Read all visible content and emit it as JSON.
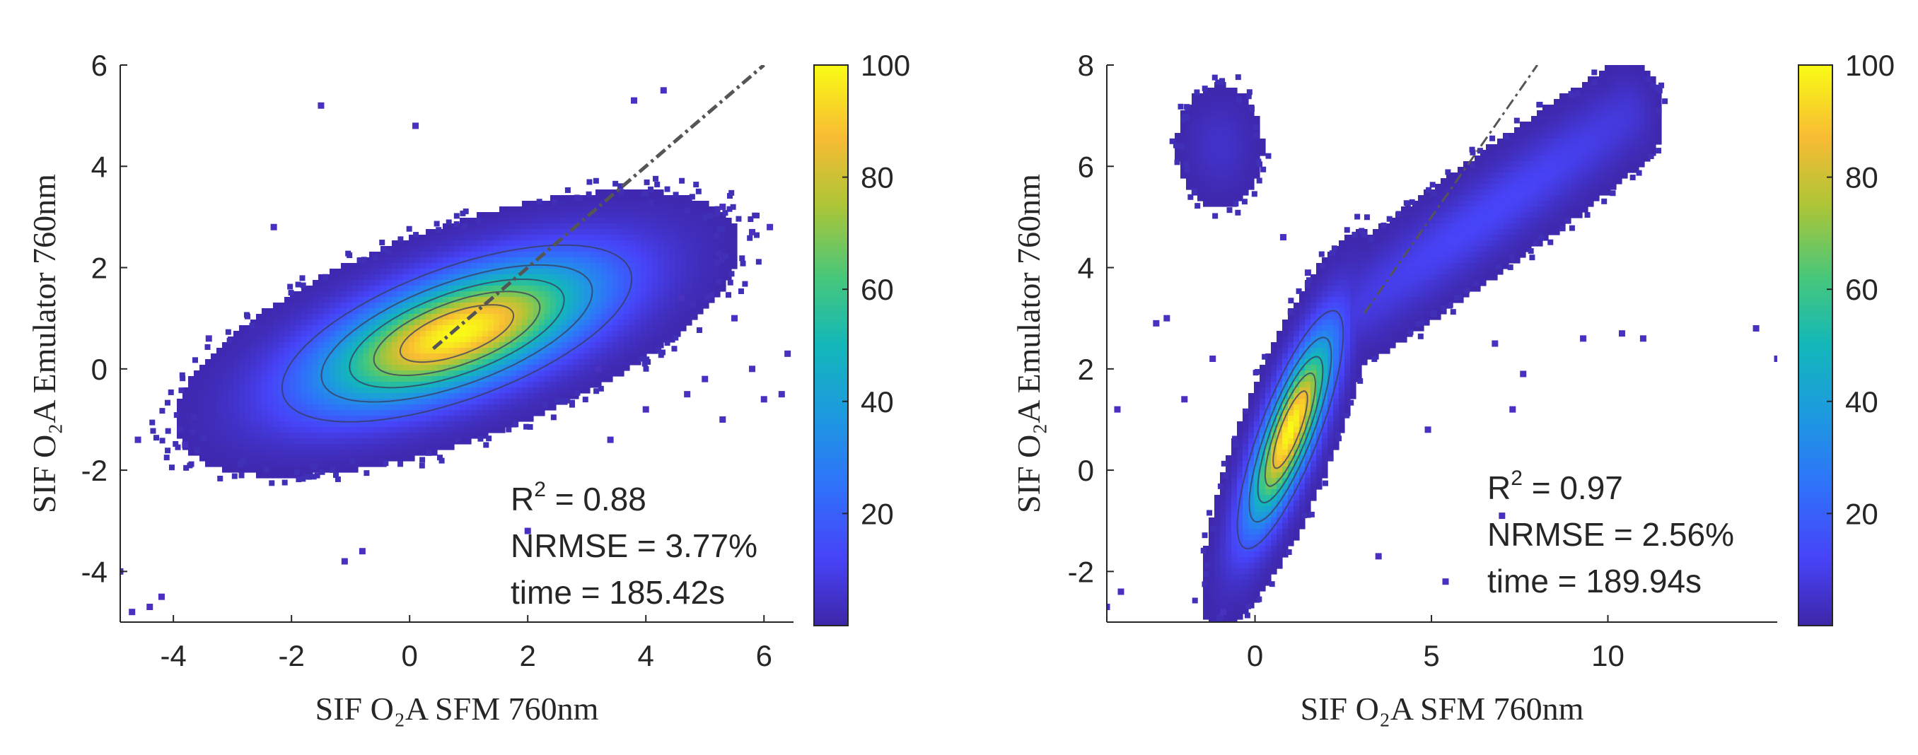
{
  "chart_data": [
    {
      "type": "scatter",
      "subtype": "density-scatter",
      "xlabel": "SIF O₂A SFM 760nm",
      "ylabel": "SIF O₂A Emulator 760nm",
      "xlim": [
        -4.9,
        6.5
      ],
      "ylim": [
        -5,
        6
      ],
      "xticks": [
        -4,
        -2,
        0,
        2,
        4,
        6
      ],
      "yticks": [
        -4,
        -2,
        0,
        2,
        4,
        6
      ],
      "xtick_labels": [
        "-4",
        "-2",
        "0",
        "2",
        "4",
        "6"
      ],
      "ytick_labels": [
        "-4",
        "-2",
        "0",
        "2",
        "4",
        "6"
      ],
      "colorbar": {
        "range": [
          0,
          100
        ],
        "ticks": [
          20,
          40,
          60,
          80,
          100
        ],
        "tick_labels": [
          "20",
          "40",
          "60",
          "80",
          "100"
        ]
      },
      "core": {
        "center": [
          0.8,
          0.7
        ],
        "angle_deg": 24,
        "spread_major": 1.55,
        "spread_minor": 0.62
      },
      "reference_line": {
        "from": [
          0.4,
          0.4
        ],
        "to": [
          6,
          6
        ],
        "style": "dash-dot"
      },
      "contour_levels": [
        0.12,
        0.28,
        0.45,
        0.62,
        0.8
      ],
      "outliers": [
        [
          -1.5,
          5.2
        ],
        [
          4.3,
          5.5
        ],
        [
          3.8,
          5.3
        ],
        [
          0.1,
          4.8
        ],
        [
          5.3,
          3.2
        ],
        [
          5.8,
          2.7
        ],
        [
          6.1,
          2.8
        ],
        [
          5.5,
          1.0
        ],
        [
          5.8,
          0.0
        ],
        [
          6.0,
          -0.6
        ],
        [
          6.3,
          -0.5
        ],
        [
          6.4,
          0.3
        ],
        [
          5.0,
          -0.2
        ],
        [
          4.7,
          -0.5
        ],
        [
          5.3,
          -1.0
        ],
        [
          4.6,
          1.4
        ],
        [
          4.0,
          -0.8
        ],
        [
          3.4,
          -1.4
        ],
        [
          -1.1,
          -3.8
        ],
        [
          -4.4,
          -4.7
        ],
        [
          -4.7,
          -4.8
        ],
        [
          -4.2,
          -4.5
        ],
        [
          -4.9,
          -4.0
        ],
        [
          -4.6,
          -1.4
        ],
        [
          -3.4,
          0.6
        ],
        [
          -2.3,
          2.8
        ],
        [
          2.0,
          -3.2
        ],
        [
          -0.8,
          -3.6
        ],
        [
          3.2,
          0.0
        ],
        [
          -3.8,
          -1.5
        ]
      ],
      "annotation": {
        "r2_label": "R",
        "r2_sup": "2",
        "r2_value": " = 0.88",
        "nrmse": "NRMSE = 3.77%",
        "time": "time = 185.42s"
      }
    },
    {
      "type": "scatter",
      "subtype": "density-scatter",
      "xlabel": "SIF O₂A SFM 760nm",
      "ylabel": "SIF O₂A Emulator 760nm",
      "xlim": [
        -4.2,
        14.8
      ],
      "ylim": [
        -3,
        8
      ],
      "xticks": [
        0,
        5,
        10
      ],
      "yticks": [
        -2,
        0,
        2,
        4,
        6,
        8
      ],
      "xtick_labels": [
        "0",
        "5",
        "10"
      ],
      "ytick_labels": [
        "-2",
        "0",
        "2",
        "4",
        "6",
        "8"
      ],
      "colorbar": {
        "range": [
          0,
          100
        ],
        "ticks": [
          20,
          40,
          60,
          80,
          100
        ],
        "tick_labels": [
          "20",
          "40",
          "60",
          "80",
          "100"
        ]
      },
      "core": {
        "center": [
          1.0,
          0.8
        ],
        "angle_deg": 60,
        "spread_major": 1.3,
        "spread_minor": 0.38
      },
      "arm": {
        "from": [
          2.5,
          3.0
        ],
        "to": [
          10.5,
          7.0
        ],
        "width": 0.45
      },
      "cluster": {
        "center": [
          -1.0,
          6.4
        ],
        "spread": 0.55
      },
      "reference_line": {
        "from": [
          3.1,
          3.1
        ],
        "to": [
          8.0,
          8.0
        ],
        "style": "dash-dot"
      },
      "contour_levels": [
        0.12,
        0.28,
        0.45,
        0.62,
        0.8
      ],
      "outliers": [
        [
          -3.8,
          -2.4
        ],
        [
          -4.2,
          -2.7
        ],
        [
          -3.9,
          1.2
        ],
        [
          -2.5,
          3.0
        ],
        [
          -2.8,
          2.9
        ],
        [
          -1.2,
          2.2
        ],
        [
          -0.9,
          -2.8
        ],
        [
          4.9,
          0.8
        ],
        [
          5.4,
          -2.2
        ],
        [
          7.0,
          -0.9
        ],
        [
          7.3,
          1.2
        ],
        [
          7.6,
          1.9
        ],
        [
          6.8,
          2.5
        ],
        [
          9.3,
          2.6
        ],
        [
          10.4,
          2.7
        ],
        [
          11.0,
          2.6
        ],
        [
          14.2,
          2.8
        ],
        [
          14.8,
          2.2
        ],
        [
          3.5,
          -1.7
        ],
        [
          -2.0,
          1.4
        ],
        [
          0.8,
          4.6
        ],
        [
          1.5,
          3.9
        ]
      ],
      "annotation": {
        "r2_label": "R",
        "r2_sup": "2",
        "r2_value": " = 0.97",
        "nrmse": "NRMSE = 2.56%",
        "time": "time = 189.94s"
      }
    }
  ]
}
